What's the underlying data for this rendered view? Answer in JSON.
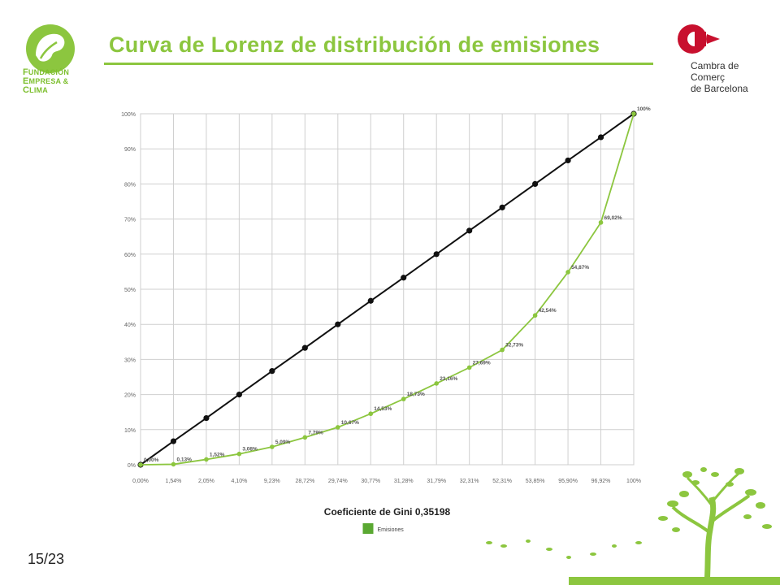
{
  "slide": {
    "title": "Curva de Lorenz de distribución de emisiones",
    "page_number": "15/23",
    "accent_color": "#8cc63f"
  },
  "logos": {
    "left": {
      "icon": "leaf-globe-icon",
      "line1_cap": "F",
      "line1_rest": "UNDACIÓN",
      "line2_cap": "E",
      "line2_rest": "MPRESA &",
      "line3_cap": "C",
      "line3_rest": "LIMA"
    },
    "right": {
      "icon": "cambra-c-icon",
      "line1": "Cambra de Comerç",
      "line2": "de Barcelona"
    }
  },
  "chart_data": {
    "type": "line",
    "title": "",
    "xlabel": "Coeficiente de Gini 0,35198",
    "ylabel": "",
    "categories": [
      "0,00%",
      "1,54%",
      "2,05%",
      "4,10%",
      "9,23%",
      "28,72%",
      "29,74%",
      "30,77%",
      "31,28%",
      "31,79%",
      "32,31%",
      "52,31%",
      "53,85%",
      "95,90%",
      "96,92%",
      "100%"
    ],
    "y_ticks": [
      "0%",
      "10%",
      "20%",
      "30%",
      "40%",
      "50%",
      "60%",
      "70%",
      "80%",
      "90%",
      "100%"
    ],
    "ylim": [
      0,
      100
    ],
    "grid": true,
    "legend_position": "bottom",
    "series": [
      {
        "name": "",
        "color": "#111111",
        "values": [
          0,
          6.7,
          13.3,
          20,
          26.7,
          33.3,
          40,
          46.7,
          53.3,
          60,
          66.7,
          73.3,
          80,
          86.7,
          93.3,
          100
        ]
      },
      {
        "name": "Emisiones",
        "color": "#8cc63f",
        "values": [
          0,
          0.13,
          1.52,
          3.08,
          5.09,
          7.79,
          10.67,
          14.53,
          18.73,
          23.16,
          27.69,
          32.73,
          42.54,
          54.87,
          69.02,
          100
        ],
        "labels": [
          "0,00%",
          "0,13%",
          "1,52%",
          "3,08%",
          "5,09%",
          "7,79%",
          "10,67%",
          "14,53%",
          "18,73%",
          "23,16%",
          "27,69%",
          "32,73%",
          "42,54%",
          "54,87%",
          "69,02%",
          "100%"
        ]
      }
    ]
  }
}
